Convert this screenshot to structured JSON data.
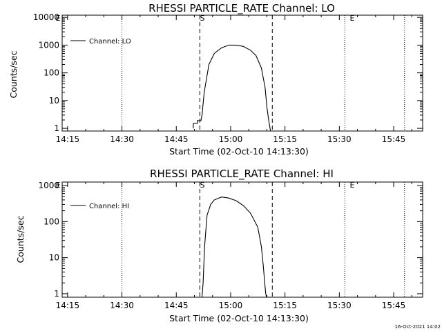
{
  "footer_timestamp": "16-Oct-2021 14:02",
  "markers": {
    "start": "S",
    "end": "E",
    "left_edge": "E"
  },
  "chart_data": [
    {
      "type": "line",
      "title": "RHESSI PARTICLE_RATE Channel: LO",
      "xlabel": "Start Time (02-Oct-10 14:13:30)",
      "ylabel": "Counts/sec",
      "yscale": "log",
      "xlim_min": [
        0,
        99.5
      ],
      "ylim": [
        0.8,
        12000
      ],
      "x_ticks": [
        1.5,
        16.5,
        31.5,
        46.5,
        61.5,
        76.5,
        91.5
      ],
      "x_tick_labels": [
        "14:15",
        "14:30",
        "14:45",
        "15:00",
        "15:15",
        "15:30",
        "15:45"
      ],
      "y_ticks": [
        1,
        10,
        100,
        1000,
        10000
      ],
      "y_tick_labels": [
        "1",
        "10",
        "100",
        "1000",
        "10000"
      ],
      "legend": "Channel: LO",
      "dotted_lines": [
        16.5,
        78,
        94.5
      ],
      "dashed_lines": [
        38,
        58
      ],
      "series": [
        {
          "name": "Channel: LO",
          "x": [
            36.2,
            36.2,
            37.3,
            37.3,
            38.3,
            38.6,
            39.2,
            40.5,
            42,
            44,
            46,
            48,
            50,
            52,
            53.5,
            55,
            56,
            56.5,
            57,
            57.5
          ],
          "y": [
            1,
            1.5,
            1.5,
            1.9,
            1.9,
            3,
            20,
            200,
            500,
            800,
            1000,
            1000,
            900,
            650,
            420,
            150,
            30,
            6,
            2,
            0.8
          ]
        }
      ]
    },
    {
      "type": "line",
      "title": "RHESSI PARTICLE_RATE Channel: HI",
      "xlabel": "Start Time (02-Oct-10 14:13:30)",
      "ylabel": "Counts/sec",
      "yscale": "log",
      "xlim_min": [
        0,
        99.5
      ],
      "ylim": [
        0.8,
        1250
      ],
      "x_ticks": [
        1.5,
        16.5,
        31.5,
        46.5,
        61.5,
        76.5,
        91.5
      ],
      "x_tick_labels": [
        "14:15",
        "14:30",
        "14:45",
        "15:00",
        "15:15",
        "15:30",
        "15:45"
      ],
      "y_ticks": [
        1,
        10,
        100,
        1000
      ],
      "y_tick_labels": [
        "1",
        "10",
        "100",
        "1000"
      ],
      "legend": "Channel: HI",
      "dotted_lines": [
        16.5,
        78,
        94.5
      ],
      "dashed_lines": [
        38,
        58
      ],
      "series": [
        {
          "name": "Channel: HI",
          "x": [
            38.6,
            38.9,
            39.3,
            40,
            41,
            42,
            44,
            46,
            48,
            50,
            52,
            54,
            55,
            55.5,
            55.9,
            56.2,
            56.4
          ],
          "y": [
            0.8,
            2,
            20,
            150,
            300,
            400,
            480,
            450,
            380,
            280,
            170,
            70,
            20,
            6,
            2,
            1,
            0.8
          ]
        }
      ]
    }
  ]
}
